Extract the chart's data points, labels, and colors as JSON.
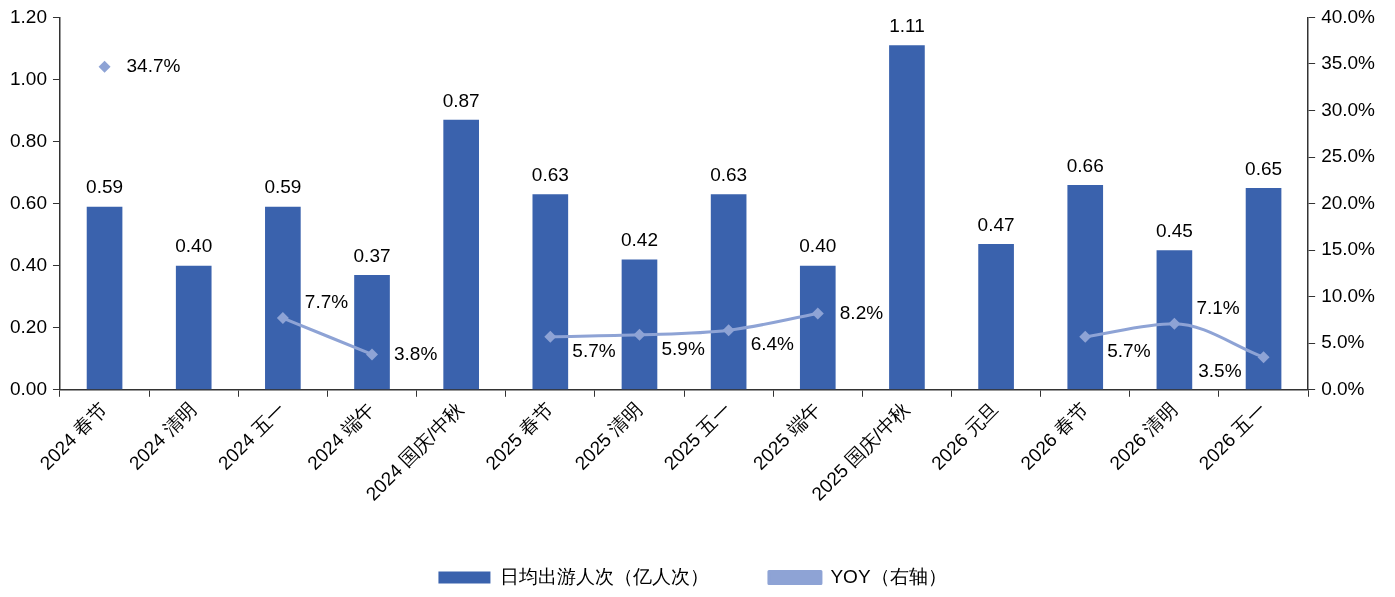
{
  "chart_data": {
    "type": "bar",
    "categories": [
      "2024 春节",
      "2024 清明",
      "2024 五一",
      "2024 端午",
      "2024 国庆/中秋",
      "2025 春节",
      "2025 清明",
      "2025 五一",
      "2025 端午",
      "2025 国庆/中秋",
      "2026 元旦",
      "2026 春节",
      "2026 清明",
      "2026 五一"
    ],
    "series": [
      {
        "name": "日均出游人次（亿人次）",
        "color": "#3a62ad",
        "values": [
          0.59,
          0.4,
          0.59,
          0.37,
          0.87,
          0.63,
          0.42,
          0.63,
          0.4,
          1.11,
          0.47,
          0.66,
          0.45,
          0.65
        ],
        "value_labels": [
          "0.59",
          "0.40",
          "0.59",
          "0.37",
          "0.87",
          "0.63",
          "0.42",
          "0.63",
          "0.40",
          "1.11",
          "0.47",
          "0.66",
          "0.45",
          "0.65"
        ]
      },
      {
        "name": "YOY（右轴）",
        "type": "line",
        "axis": "y2",
        "color": "#8ea3d5",
        "marker": "diamond",
        "values": [
          34.7,
          null,
          7.7,
          3.8,
          null,
          5.7,
          5.9,
          6.4,
          8.2,
          null,
          null,
          5.7,
          7.1,
          3.5
        ],
        "value_labels": [
          "34.7%",
          null,
          "7.7%",
          "3.8%",
          null,
          "5.7%",
          "5.9%",
          "6.4%",
          "8.2%",
          null,
          null,
          "5.7%",
          "7.1%",
          "3.5%"
        ]
      }
    ],
    "ylim": [
      0,
      1.2
    ],
    "yticks": [
      {
        "value": 0,
        "label": "0.00"
      },
      {
        "value": 0.2,
        "label": "0.20"
      },
      {
        "value": 0.4,
        "label": "0.40"
      },
      {
        "value": 0.6,
        "label": "0.60"
      },
      {
        "value": 0.8,
        "label": "0.80"
      },
      {
        "value": 1,
        "label": "1.00"
      },
      {
        "value": 1.2,
        "label": "1.20"
      }
    ],
    "y2lim": [
      0,
      40
    ],
    "y2ticks": [
      {
        "value": 0,
        "label": "0.0%"
      },
      {
        "value": 5,
        "label": "5.0%"
      },
      {
        "value": 10,
        "label": "10.0%"
      },
      {
        "value": 15,
        "label": "15.0%"
      },
      {
        "value": 20,
        "label": "20.0%"
      },
      {
        "value": 25,
        "label": "25.0%"
      },
      {
        "value": 30,
        "label": "30.0%"
      },
      {
        "value": 35,
        "label": "35.0%"
      },
      {
        "value": 40,
        "label": "40.0%"
      }
    ],
    "legend": "bottom"
  }
}
